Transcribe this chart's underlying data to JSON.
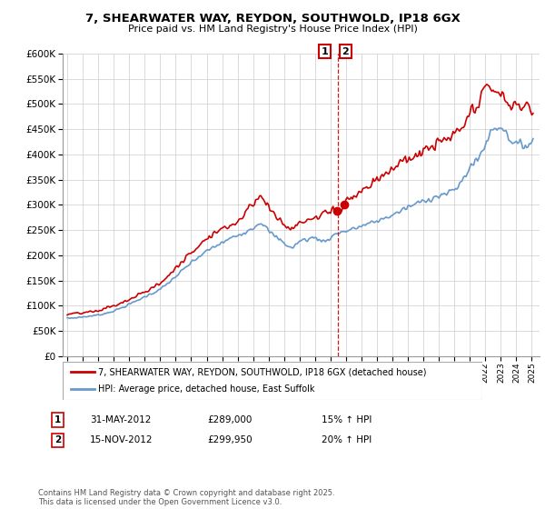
{
  "title": "7, SHEARWATER WAY, REYDON, SOUTHWOLD, IP18 6GX",
  "subtitle": "Price paid vs. HM Land Registry's House Price Index (HPI)",
  "legend_entry1": "7, SHEARWATER WAY, REYDON, SOUTHWOLD, IP18 6GX (detached house)",
  "legend_entry2": "HPI: Average price, detached house, East Suffolk",
  "annotation1_date": "31-MAY-2012",
  "annotation1_price": "£289,000",
  "annotation1_hpi": "15% ↑ HPI",
  "annotation2_date": "15-NOV-2012",
  "annotation2_price": "£299,950",
  "annotation2_hpi": "20% ↑ HPI",
  "footer": "Contains HM Land Registry data © Crown copyright and database right 2025.\nThis data is licensed under the Open Government Licence v3.0.",
  "line1_color": "#cc0000",
  "line2_color": "#6699cc",
  "vline_color": "#cc0000",
  "point1_x": 2012.42,
  "point1_y": 289000,
  "point2_x": 2012.88,
  "point2_y": 299950,
  "ylim": [
    0,
    600000
  ],
  "xlim_start": 1994.7,
  "xlim_end": 2025.5,
  "background_color": "#ffffff",
  "grid_color": "#cccccc",
  "yticks": [
    0,
    50000,
    100000,
    150000,
    200000,
    250000,
    300000,
    350000,
    400000,
    450000,
    500000,
    550000,
    600000
  ]
}
